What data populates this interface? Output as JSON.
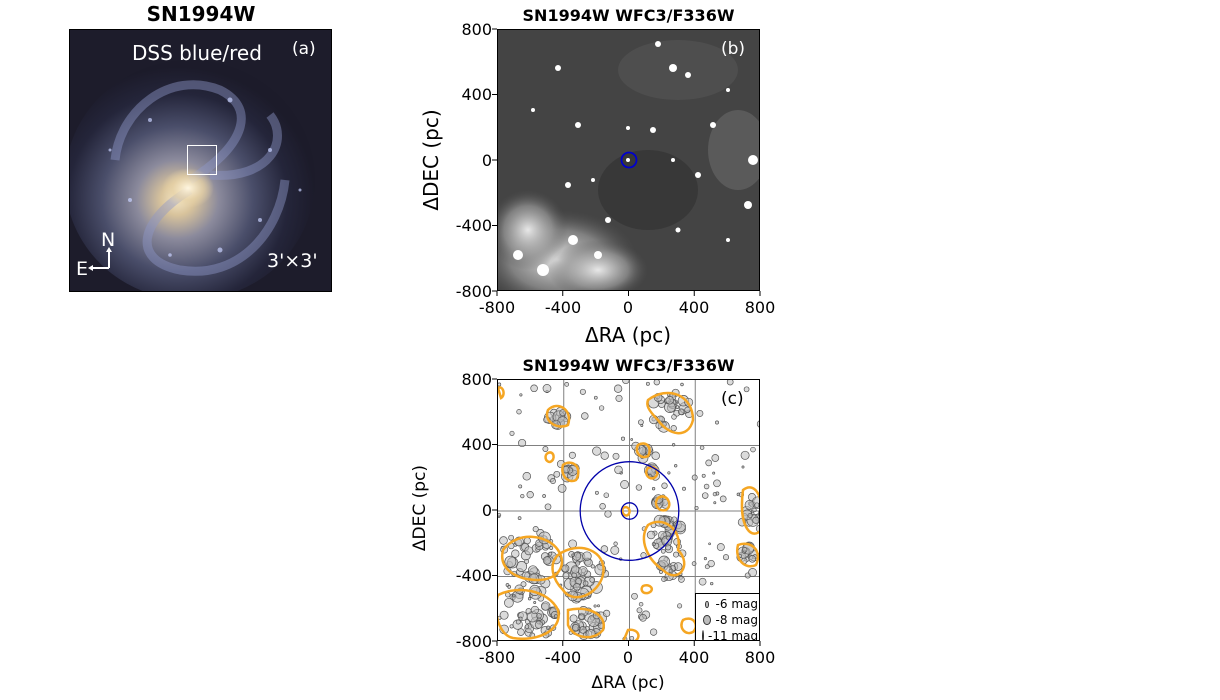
{
  "panel_a": {
    "title": "SN1994W",
    "survey_label": "DSS blue/red",
    "panel_tag": "(a)",
    "north": "N",
    "east": "E",
    "fov": "3'×3'"
  },
  "panel_b": {
    "title": "SN1994W WFC3/F336W",
    "panel_tag": "(b)",
    "xlabel": "ΔRA (pc)",
    "ylabel": "ΔDEC (pc)",
    "xticks": [
      "-800",
      "-400",
      "0",
      "400",
      "800"
    ],
    "yticks": [
      "800",
      "400",
      "0",
      "-400",
      "-800"
    ]
  },
  "panel_c": {
    "title": "SN1994W WFC3/F336W",
    "panel_tag": "(c)",
    "xlabel": "ΔRA (pc)",
    "ylabel": "ΔDEC (pc)",
    "xticks": [
      "-800",
      "-400",
      "0",
      "400",
      "800"
    ],
    "yticks": [
      "800",
      "400",
      "0",
      "-400",
      "-800"
    ],
    "legend": [
      "-6 mag",
      "-8 mag",
      "-11 mag"
    ]
  },
  "chart_data": [
    {
      "type": "scatter",
      "title": "SN1994W WFC3/F336W",
      "xlabel": "ΔRA (pc)",
      "ylabel": "ΔDEC (pc)",
      "xlim": [
        -800,
        800
      ],
      "ylim": [
        -800,
        800
      ],
      "markers": [
        {
          "x": 0,
          "y": 0,
          "radius_pc": 50
        }
      ]
    },
    {
      "type": "scatter",
      "title": "SN1994W WFC3/F336W",
      "xlabel": "ΔRA (pc)",
      "ylabel": "ΔDEC (pc)",
      "xlim": [
        -800,
        800
      ],
      "ylim": [
        -800,
        800
      ],
      "grid": true,
      "legend_position": "bottom-right",
      "circles": [
        {
          "x": 0,
          "y": 0,
          "radius_pc": 50
        },
        {
          "x": 0,
          "y": 0,
          "radius_pc": 300
        }
      ],
      "legend_sizes": [
        "-6 mag",
        "-8 mag",
        "-11 mag"
      ]
    }
  ]
}
